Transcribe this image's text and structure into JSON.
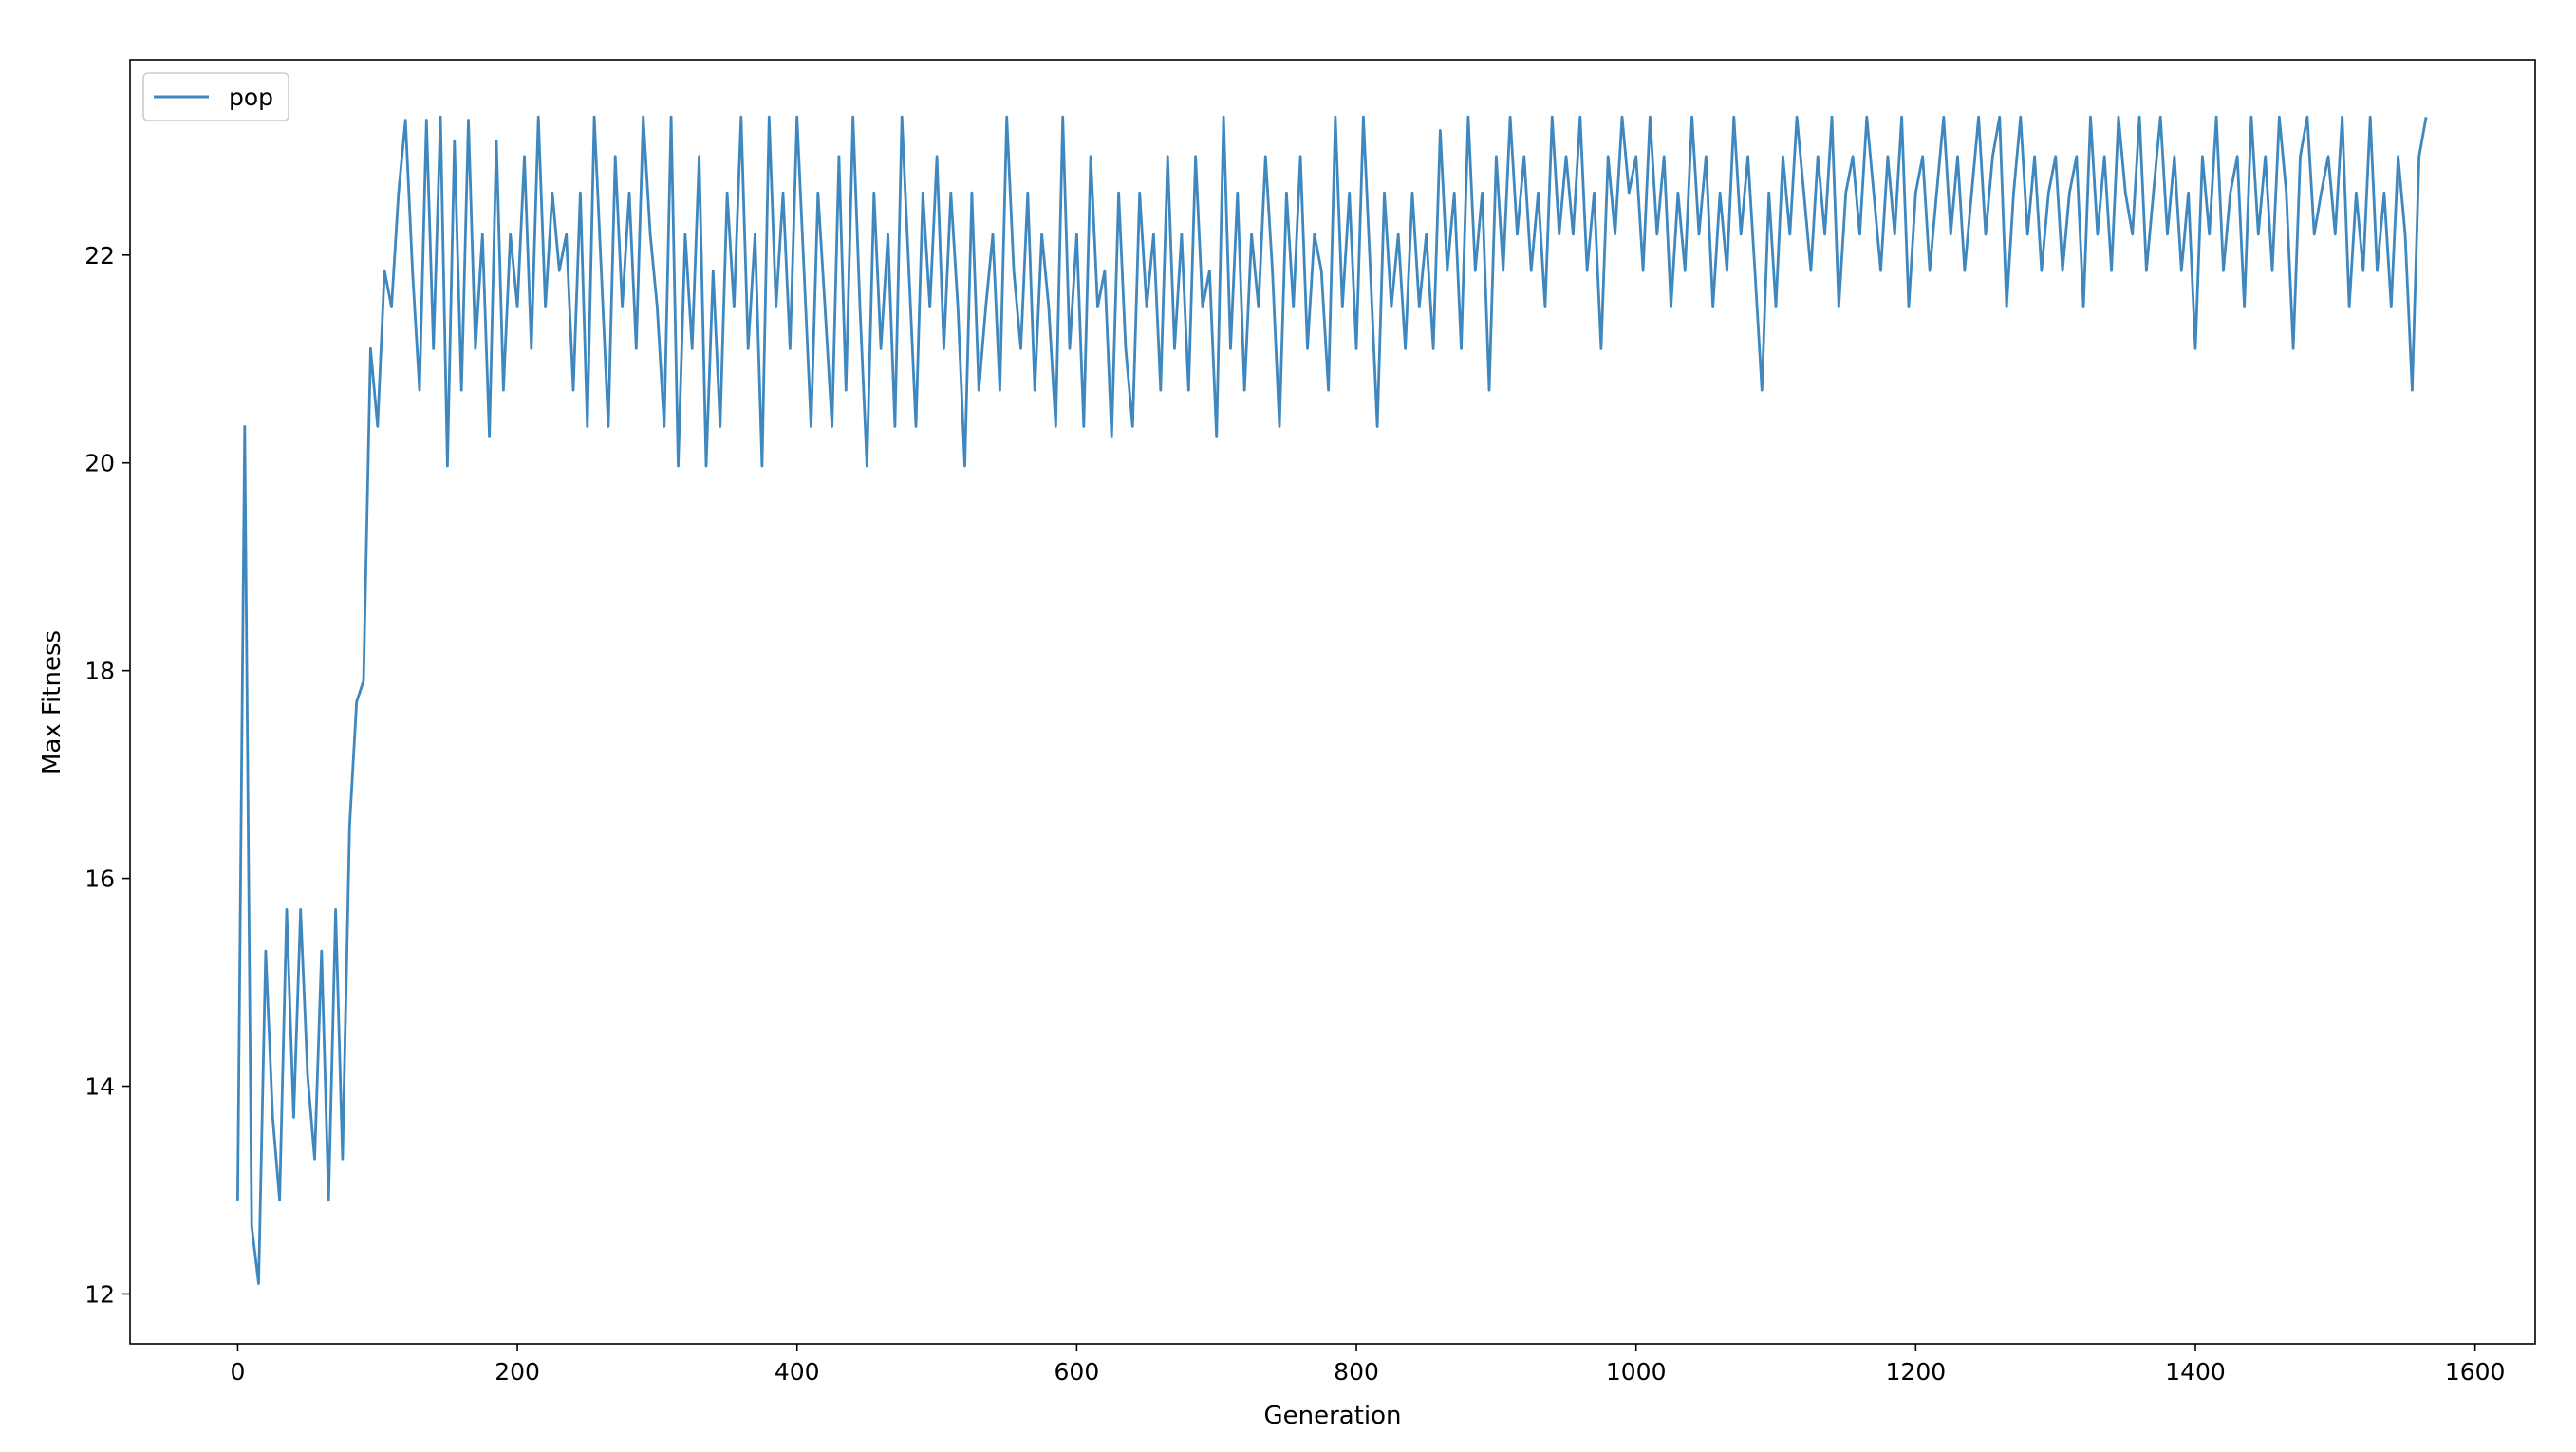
{
  "chart_data": {
    "type": "line",
    "title": "",
    "xlabel": "Generation",
    "ylabel": "Max Fitness",
    "xlim": [
      -77,
      1643
    ],
    "ylim": [
      11.52,
      23.88
    ],
    "xticks": [
      0,
      200,
      400,
      600,
      800,
      1000,
      1200,
      1400,
      1600
    ],
    "yticks": [
      12,
      14,
      16,
      18,
      20,
      22
    ],
    "grid": false,
    "legend": "top-left",
    "series": [
      {
        "name": "pop",
        "color": "#3f88bf",
        "x": [
          0,
          5,
          10,
          15,
          20,
          25,
          30,
          35,
          40,
          45,
          50,
          55,
          60,
          65,
          70,
          75,
          80,
          85,
          90,
          95,
          100,
          105,
          110,
          115,
          120,
          125,
          130,
          135,
          140,
          145,
          150,
          155,
          160,
          165,
          170,
          175,
          180,
          185,
          190,
          195,
          200,
          205,
          210,
          215,
          220,
          225,
          230,
          235,
          240,
          245,
          250,
          255,
          260,
          265,
          270,
          275,
          280,
          285,
          290,
          295,
          300,
          305,
          310,
          315,
          320,
          325,
          330,
          335,
          340,
          345,
          350,
          355,
          360,
          365,
          370,
          375,
          380,
          385,
          390,
          395,
          400,
          405,
          410,
          415,
          420,
          425,
          430,
          435,
          440,
          445,
          450,
          455,
          460,
          465,
          470,
          475,
          480,
          485,
          490,
          495,
          500,
          505,
          510,
          515,
          520,
          525,
          530,
          535,
          540,
          545,
          550,
          555,
          560,
          565,
          570,
          575,
          580,
          585,
          590,
          595,
          600,
          605,
          610,
          615,
          620,
          625,
          630,
          635,
          640,
          645,
          650,
          655,
          660,
          665,
          670,
          675,
          680,
          685,
          690,
          695,
          700,
          705,
          710,
          715,
          720,
          725,
          730,
          735,
          740,
          745,
          750,
          755,
          760,
          765,
          770,
          775,
          780,
          785,
          790,
          795,
          800,
          805,
          810,
          815,
          820,
          825,
          830,
          835,
          840,
          845,
          850,
          855,
          860,
          865,
          870,
          875,
          880,
          885,
          890,
          895,
          900,
          905,
          910,
          915,
          920,
          925,
          930,
          935,
          940,
          945,
          950,
          955,
          960,
          965,
          970,
          975,
          980,
          985,
          990,
          995,
          1000,
          1005,
          1010,
          1015,
          1020,
          1025,
          1030,
          1035,
          1040,
          1045,
          1050,
          1055,
          1060,
          1065,
          1070,
          1075,
          1080,
          1085,
          1090,
          1095,
          1100,
          1105,
          1110,
          1115,
          1120,
          1125,
          1130,
          1135,
          1140,
          1145,
          1150,
          1155,
          1160,
          1165,
          1170,
          1175,
          1180,
          1185,
          1190,
          1195,
          1200,
          1205,
          1210,
          1215,
          1220,
          1225,
          1230,
          1235,
          1240,
          1245,
          1250,
          1255,
          1260,
          1265,
          1270,
          1275,
          1280,
          1285,
          1290,
          1295,
          1300,
          1305,
          1310,
          1315,
          1320,
          1325,
          1330,
          1335,
          1340,
          1345,
          1350,
          1355,
          1360,
          1365,
          1370,
          1375,
          1380,
          1385,
          1390,
          1395,
          1400,
          1405,
          1410,
          1415,
          1420,
          1425,
          1430,
          1435,
          1440,
          1445,
          1450,
          1455,
          1460,
          1465,
          1470,
          1475,
          1480,
          1485,
          1490,
          1495,
          1500,
          1505,
          1510,
          1515,
          1520,
          1525,
          1530,
          1535,
          1540,
          1545,
          1550,
          1555,
          1560,
          1565
        ],
        "y": [
          12.9,
          20.35,
          12.65,
          12.1,
          15.3,
          13.7,
          12.9,
          15.7,
          13.7,
          15.7,
          14.1,
          13.3,
          15.3,
          12.9,
          15.7,
          13.3,
          16.5,
          17.7,
          17.9,
          21.1,
          20.35,
          21.85,
          21.5,
          22.6,
          23.3,
          21.85,
          20.7,
          23.3,
          21.1,
          23.33,
          19.97,
          23.1,
          20.7,
          23.3,
          21.1,
          22.2,
          20.25,
          23.1,
          20.7,
          22.2,
          21.5,
          22.95,
          21.1,
          23.33,
          21.5,
          22.6,
          21.85,
          22.2,
          20.7,
          22.6,
          20.35,
          23.33,
          21.85,
          20.35,
          22.95,
          21.5,
          22.6,
          21.1,
          23.33,
          22.2,
          21.5,
          20.35,
          23.33,
          19.97,
          22.2,
          21.1,
          22.95,
          19.97,
          21.85,
          20.35,
          22.6,
          21.5,
          23.33,
          21.1,
          22.2,
          19.97,
          23.33,
          21.5,
          22.6,
          21.1,
          23.33,
          21.85,
          20.35,
          22.6,
          21.5,
          20.35,
          22.95,
          20.7,
          23.33,
          21.5,
          19.97,
          22.6,
          21.1,
          22.2,
          20.35,
          23.33,
          21.85,
          20.35,
          22.6,
          21.5,
          22.95,
          21.1,
          22.6,
          21.5,
          19.97,
          22.6,
          20.7,
          21.5,
          22.2,
          20.7,
          23.33,
          21.85,
          21.1,
          22.6,
          20.7,
          22.2,
          21.5,
          20.35,
          23.33,
          21.1,
          22.2,
          20.35,
          22.95,
          21.5,
          21.85,
          20.25,
          22.6,
          21.1,
          20.35,
          22.6,
          21.5,
          22.2,
          20.7,
          22.95,
          21.1,
          22.2,
          20.7,
          22.95,
          21.5,
          21.85,
          20.25,
          23.33,
          21.1,
          22.6,
          20.7,
          22.2,
          21.5,
          22.95,
          21.85,
          20.35,
          22.6,
          21.5,
          22.95,
          21.1,
          22.2,
          21.85,
          20.7,
          23.33,
          21.5,
          22.6,
          21.1,
          23.33,
          21.85,
          20.35,
          22.6,
          21.5,
          22.2,
          21.1,
          22.6,
          21.5,
          22.2,
          21.1,
          23.2,
          21.85,
          22.6,
          21.1,
          23.33,
          21.85,
          22.6,
          20.7,
          22.95,
          21.85,
          23.33,
          22.2,
          22.95,
          21.85,
          22.6,
          21.5,
          23.33,
          22.2,
          22.95,
          22.2,
          23.33,
          21.85,
          22.6,
          21.1,
          22.95,
          22.2,
          23.33,
          22.6,
          22.95,
          21.85,
          23.33,
          22.2,
          22.95,
          21.5,
          22.6,
          21.85,
          23.33,
          22.2,
          22.95,
          21.5,
          22.6,
          21.85,
          23.33,
          22.2,
          22.95,
          21.85,
          20.7,
          22.6,
          21.5,
          22.95,
          22.2,
          23.33,
          22.6,
          21.85,
          22.95,
          22.2,
          23.33,
          21.5,
          22.6,
          22.95,
          22.2,
          23.33,
          22.6,
          21.85,
          22.95,
          22.2,
          23.33,
          21.5,
          22.6,
          22.95,
          21.85,
          22.6,
          23.33,
          22.2,
          22.95,
          21.85,
          22.6,
          23.33,
          22.2,
          22.95,
          23.33,
          21.5,
          22.6,
          23.33,
          22.2,
          22.95,
          21.85,
          22.6,
          22.95,
          21.85,
          22.6,
          22.95,
          21.5,
          23.33,
          22.2,
          22.95,
          21.85,
          23.33,
          22.6,
          22.2,
          23.33,
          21.85,
          22.6,
          23.33,
          22.2,
          22.95,
          21.85,
          22.6,
          21.1,
          22.95,
          22.2,
          23.33,
          21.85,
          22.6,
          22.95,
          21.5,
          23.33,
          22.2,
          22.95,
          21.85,
          23.33,
          22.6,
          21.1,
          22.95,
          23.33,
          22.2,
          22.6,
          22.95,
          22.2,
          23.33,
          21.5,
          22.6,
          21.85,
          23.33,
          21.85,
          22.6,
          21.5,
          22.95,
          22.2,
          20.7,
          22.95,
          23.33
        ]
      }
    ]
  }
}
